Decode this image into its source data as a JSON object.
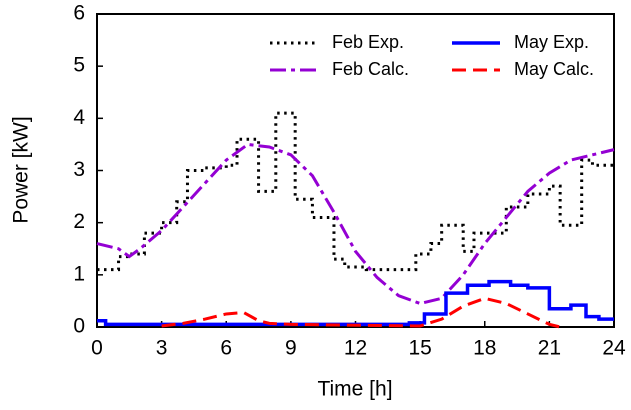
{
  "chart_data": {
    "type": "line",
    "xlabel": "Time [h]",
    "ylabel": "Power [kW]",
    "xlim": [
      0,
      24
    ],
    "xticks": [
      0,
      3,
      6,
      9,
      12,
      15,
      18,
      21,
      24
    ],
    "ylim": [
      0,
      6
    ],
    "yticks": [
      0,
      1,
      2,
      3,
      4,
      5,
      6
    ],
    "legend": "upper right",
    "series": [
      {
        "name": "Feb Exp.",
        "color": "#000000",
        "x": [
          0,
          1,
          1,
          1.5,
          1.5,
          2.2,
          2.2,
          3,
          3,
          3.7,
          3.7,
          4.2,
          4.2,
          5,
          5,
          6,
          6,
          6.5,
          6.5,
          7.5,
          7.5,
          8.3,
          8.3,
          9.2,
          9.2,
          10,
          10,
          11,
          11,
          11.5,
          11.5,
          12.5,
          12.5,
          14.8,
          14.8,
          15.5,
          15.5,
          16,
          16,
          17,
          17,
          17.5,
          17.5,
          19,
          19,
          20,
          20,
          21,
          21,
          21.5,
          21.5,
          22.5,
          22.5,
          23,
          23,
          24
        ],
        "values": [
          1.1,
          1.1,
          1.35,
          1.35,
          1.4,
          1.4,
          1.8,
          1.8,
          2.0,
          2.0,
          2.4,
          2.4,
          3.0,
          3.0,
          3.05,
          3.05,
          3.1,
          3.1,
          3.6,
          3.6,
          2.6,
          2.6,
          4.1,
          4.1,
          2.45,
          2.45,
          2.1,
          2.1,
          1.3,
          1.3,
          1.15,
          1.15,
          1.1,
          1.1,
          1.4,
          1.4,
          1.6,
          1.6,
          1.95,
          1.95,
          1.45,
          1.45,
          1.8,
          1.8,
          2.3,
          2.3,
          2.55,
          2.55,
          2.7,
          2.7,
          1.95,
          1.95,
          3.2,
          3.2,
          3.1,
          3.1
        ]
      },
      {
        "name": "Feb Calc.",
        "color": "#9400d3",
        "x": [
          0,
          1,
          1.5,
          2,
          3,
          4,
          5,
          6,
          7,
          8,
          9,
          10,
          11,
          12,
          13,
          14,
          15,
          16,
          17,
          18,
          19,
          20,
          21,
          22,
          23,
          24
        ],
        "values": [
          1.6,
          1.5,
          1.35,
          1.5,
          1.85,
          2.3,
          2.75,
          3.2,
          3.5,
          3.45,
          3.3,
          2.9,
          2.2,
          1.45,
          0.95,
          0.6,
          0.45,
          0.55,
          1.0,
          1.6,
          2.1,
          2.6,
          2.95,
          3.2,
          3.3,
          3.4
        ]
      },
      {
        "name": "May Exp.",
        "color": "#0000ff",
        "x": [
          0,
          0.4,
          0.4,
          14.5,
          14.5,
          15.2,
          15.2,
          16.2,
          16.2,
          17.2,
          17.2,
          18.2,
          18.2,
          19.2,
          19.2,
          20,
          20,
          21,
          21,
          22,
          22,
          22.7,
          22.7,
          23.3,
          23.3,
          24
        ],
        "values": [
          0.12,
          0.12,
          0.05,
          0.05,
          0.08,
          0.08,
          0.25,
          0.25,
          0.65,
          0.65,
          0.8,
          0.8,
          0.87,
          0.87,
          0.8,
          0.8,
          0.75,
          0.75,
          0.35,
          0.35,
          0.42,
          0.42,
          0.2,
          0.2,
          0.15,
          0.15
        ]
      },
      {
        "name": "May Calc.",
        "color": "#ff0000",
        "x": [
          3,
          4,
          5,
          6,
          6.8,
          7.5,
          8,
          9,
          15,
          16,
          17,
          18,
          19,
          20,
          21,
          21.5
        ],
        "values": [
          0.02,
          0.07,
          0.15,
          0.25,
          0.28,
          0.12,
          0.07,
          0.05,
          0.02,
          0.15,
          0.4,
          0.55,
          0.45,
          0.25,
          0.05,
          0
        ]
      }
    ]
  }
}
